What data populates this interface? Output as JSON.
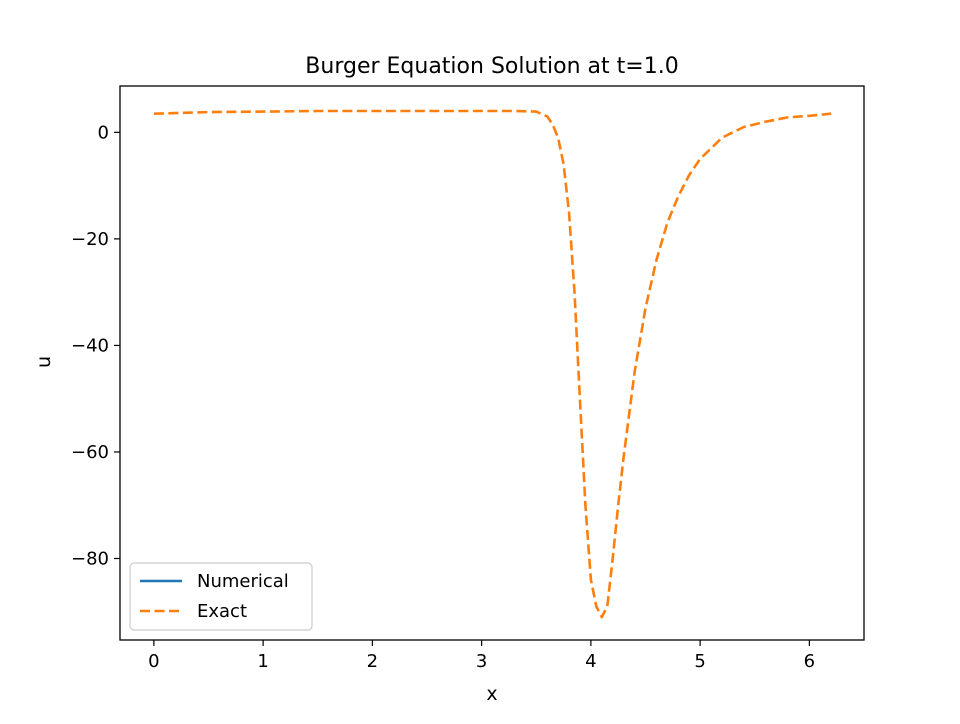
{
  "chart_data": {
    "type": "line",
    "title": "Burger Equation Solution at t=1.0",
    "xlabel": "x",
    "ylabel": "u",
    "xlim": [
      -0.31,
      6.5
    ],
    "ylim": [
      -95.3,
      8.7
    ],
    "xticks": [
      0,
      1,
      2,
      3,
      4,
      5,
      6
    ],
    "xtick_labels": [
      "0",
      "1",
      "2",
      "3",
      "4",
      "5",
      "6"
    ],
    "yticks": [
      0,
      -20,
      -40,
      -60,
      -80
    ],
    "ytick_labels": [
      "0",
      "−20",
      "−40",
      "−60",
      "−80"
    ],
    "grid": false,
    "legend_position": "lower-left",
    "series": [
      {
        "name": "Numerical",
        "color": "#1f77b4",
        "style": "solid",
        "x": [],
        "y": []
      },
      {
        "name": "Exact",
        "color": "#ff7f0e",
        "style": "dashed",
        "x": [
          0,
          0.5,
          1.0,
          1.5,
          2.0,
          2.5,
          3.0,
          3.3,
          3.5,
          3.6,
          3.65,
          3.7,
          3.75,
          3.8,
          3.85,
          3.9,
          3.95,
          4.0,
          4.05,
          4.1,
          4.15,
          4.2,
          4.25,
          4.3,
          4.4,
          4.5,
          4.6,
          4.7,
          4.8,
          4.9,
          5.0,
          5.2,
          5.4,
          5.6,
          5.8,
          6.0,
          6.2
        ],
        "y": [
          3.5,
          3.8,
          3.9,
          4.0,
          4.0,
          4.0,
          4.0,
          4.0,
          3.9,
          3.0,
          1.5,
          -1.0,
          -6.0,
          -15.0,
          -30.0,
          -50.0,
          -70.0,
          -84.0,
          -89.0,
          -91.0,
          -89.0,
          -80.0,
          -70.0,
          -61.0,
          -45.0,
          -33.0,
          -24.0,
          -17.0,
          -12.0,
          -8.0,
          -5.0,
          -1.0,
          1.0,
          2.0,
          2.8,
          3.1,
          3.5
        ]
      }
    ]
  }
}
